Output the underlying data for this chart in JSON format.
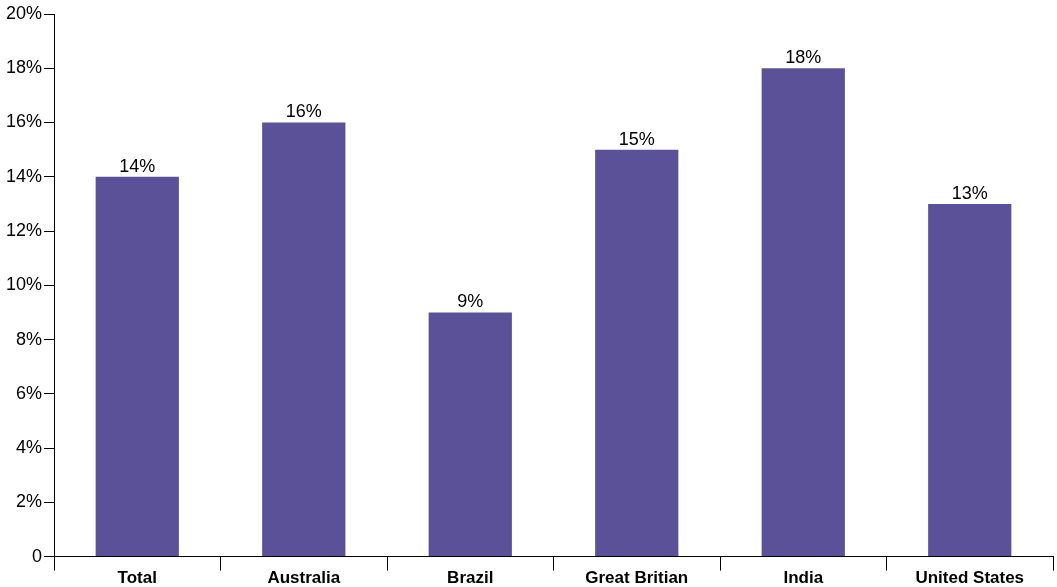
{
  "chart_data": {
    "type": "bar",
    "categories": [
      "Total",
      "Australia",
      "Brazil",
      "Great Britian",
      "India",
      "United States"
    ],
    "values": [
      14,
      16,
      9,
      15,
      18,
      13
    ],
    "value_labels": [
      "14%",
      "16%",
      "9%",
      "15%",
      "18%",
      "13%"
    ],
    "color": "#5b5198",
    "ylim": [
      0,
      20
    ],
    "yticks": [
      0,
      {
        "value": 2,
        "label": "2%"
      },
      {
        "value": 4,
        "label": "4%"
      },
      {
        "value": 6,
        "label": "6%"
      },
      {
        "value": 8,
        "label": "8%"
      },
      {
        "value": 10,
        "label": "10%"
      },
      {
        "value": 12,
        "label": "12%"
      },
      {
        "value": 14,
        "label": "14%"
      },
      {
        "value": 16,
        "label": "16%"
      },
      {
        "value": 18,
        "label": "18%"
      },
      {
        "value": 20,
        "label": "20%"
      }
    ]
  }
}
